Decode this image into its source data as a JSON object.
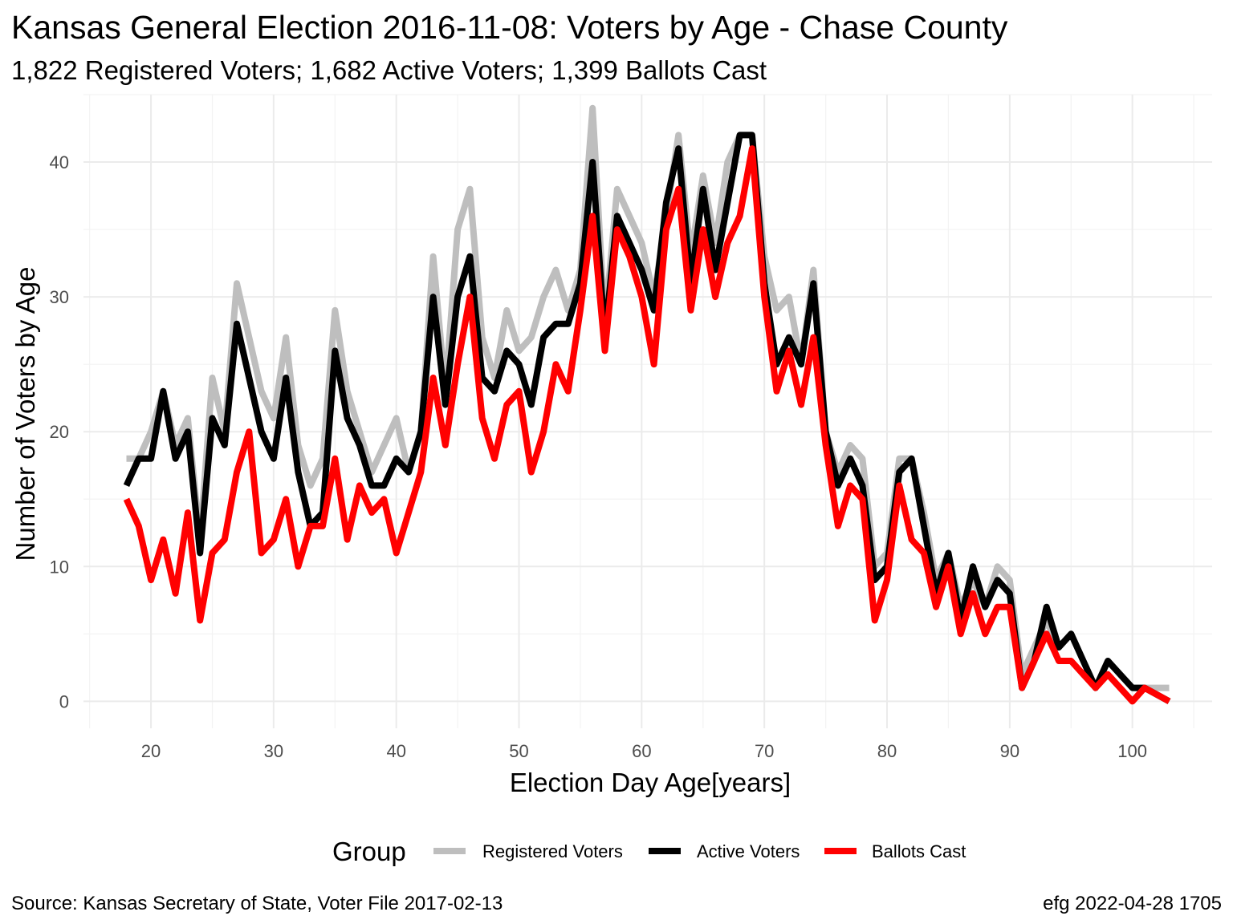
{
  "chart_data": {
    "type": "line",
    "title": "Kansas General Election 2016-11-08:  Voters by Age - Chase County",
    "subtitle": "1,822 Registered Voters; 1,682 Active Voters; 1,399 Ballots Cast",
    "xlabel": "Election Day Age[years]",
    "ylabel": "Number of Voters by Age",
    "xlim": [
      14.5,
      106.5
    ],
    "ylim": [
      -2,
      45
    ],
    "x_ticks": [
      20,
      30,
      40,
      50,
      60,
      70,
      80,
      90,
      100
    ],
    "y_ticks": [
      0,
      10,
      20,
      30,
      40
    ],
    "grid": true,
    "legend": {
      "title": "Group",
      "placement": "bottom"
    },
    "caption_left": "Source:  Kansas Secretary of State, Voter File  2017-02-13",
    "caption_right": "efg 2022-04-28 1705",
    "x": [
      18,
      19,
      20,
      21,
      22,
      23,
      24,
      25,
      26,
      27,
      28,
      29,
      30,
      31,
      32,
      33,
      34,
      35,
      36,
      37,
      38,
      39,
      40,
      41,
      42,
      43,
      44,
      45,
      46,
      47,
      48,
      49,
      50,
      51,
      52,
      53,
      54,
      55,
      56,
      57,
      58,
      59,
      60,
      61,
      62,
      63,
      64,
      65,
      66,
      67,
      68,
      69,
      70,
      71,
      72,
      73,
      74,
      75,
      76,
      77,
      78,
      79,
      80,
      81,
      82,
      83,
      84,
      85,
      86,
      87,
      88,
      89,
      90,
      91,
      92,
      93,
      94,
      95,
      96,
      97,
      98,
      99,
      100,
      101,
      102,
      103
    ],
    "series": [
      {
        "name": "Registered Voters",
        "color": "#bebebe",
        "values": [
          18,
          18,
          20,
          23,
          19,
          21,
          12,
          24,
          20,
          31,
          27,
          23,
          21,
          27,
          19,
          16,
          18,
          29,
          23,
          20,
          17,
          19,
          21,
          17,
          20,
          33,
          23,
          35,
          38,
          27,
          24,
          29,
          26,
          27,
          30,
          32,
          29,
          32,
          44,
          28,
          38,
          36,
          34,
          30,
          36,
          42,
          33,
          39,
          34,
          40,
          42,
          42,
          33,
          29,
          30,
          25,
          32,
          20,
          17,
          19,
          18,
          10,
          11,
          18,
          18,
          14,
          9,
          11,
          7,
          9,
          7,
          10,
          9,
          2,
          4,
          6,
          4,
          5,
          3,
          1,
          3,
          2,
          1,
          1,
          1,
          1
        ]
      },
      {
        "name": "Active Voters",
        "color": "#000000",
        "values": [
          16,
          18,
          18,
          23,
          18,
          20,
          11,
          21,
          19,
          28,
          24,
          20,
          18,
          24,
          17,
          13,
          14,
          26,
          21,
          19,
          16,
          16,
          18,
          17,
          20,
          30,
          22,
          30,
          33,
          24,
          23,
          26,
          25,
          22,
          27,
          28,
          28,
          31,
          40,
          27,
          36,
          34,
          32,
          29,
          37,
          41,
          31,
          38,
          32,
          37,
          42,
          42,
          31,
          25,
          27,
          25,
          31,
          20,
          16,
          18,
          16,
          9,
          10,
          17,
          18,
          13,
          8,
          11,
          6,
          10,
          7,
          9,
          8,
          1,
          3,
          7,
          4,
          5,
          3,
          1,
          3,
          2,
          1,
          1,
          0.5,
          0
        ]
      },
      {
        "name": "Ballots Cast",
        "color": "#ff0000",
        "values": [
          15,
          13,
          9,
          12,
          8,
          14,
          6,
          11,
          12,
          17,
          20,
          11,
          12,
          15,
          10,
          13,
          13,
          18,
          12,
          16,
          14,
          15,
          11,
          14,
          17,
          24,
          19,
          25,
          30,
          21,
          18,
          22,
          23,
          17,
          20,
          25,
          23,
          29,
          36,
          26,
          35,
          33,
          30,
          25,
          35,
          38,
          29,
          35,
          30,
          34,
          36,
          41,
          30,
          23,
          26,
          22,
          27,
          19,
          13,
          16,
          15,
          6,
          9,
          16,
          12,
          11,
          7,
          10,
          5,
          8,
          5,
          7,
          7,
          1,
          3,
          5,
          3,
          3,
          2,
          1,
          2,
          1,
          0,
          1,
          0.5,
          0
        ]
      }
    ]
  }
}
